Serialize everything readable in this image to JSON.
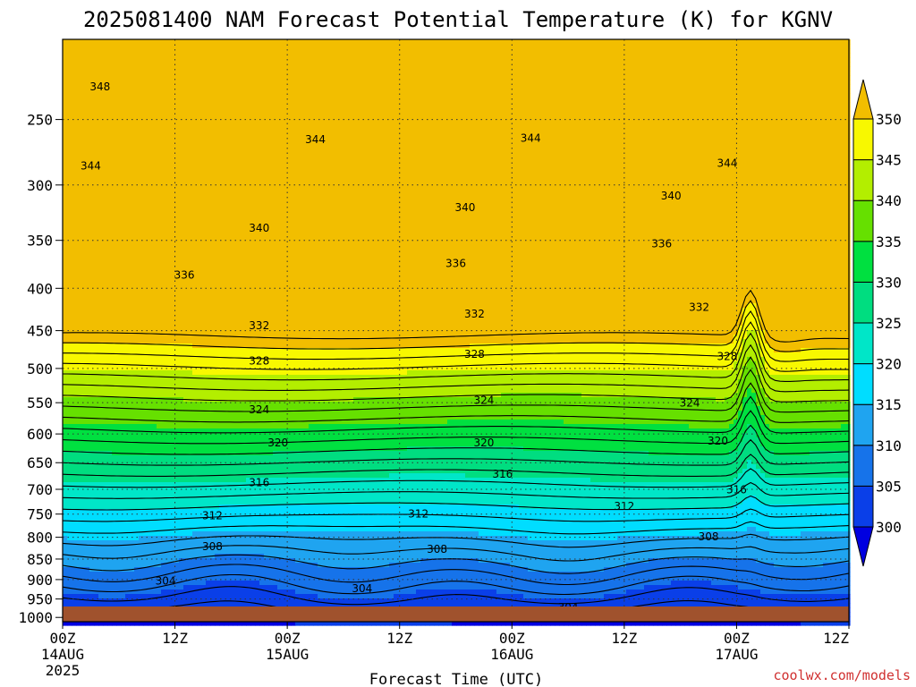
{
  "chart_data": {
    "type": "heatmap",
    "title": "2025081400 NAM Forecast Potential Temperature (K) for KGNV",
    "xlabel": "Forecast Time (UTC)",
    "ylabel": "",
    "credit": "coolwx.com/models",
    "x_ticks": [
      {
        "hours": 0,
        "label": "00Z",
        "sub": "14AUG",
        "year": "2025"
      },
      {
        "hours": 12,
        "label": "12Z",
        "sub": "",
        "year": ""
      },
      {
        "hours": 24,
        "label": "00Z",
        "sub": "15AUG",
        "year": ""
      },
      {
        "hours": 36,
        "label": "12Z",
        "sub": "",
        "year": ""
      },
      {
        "hours": 48,
        "label": "00Z",
        "sub": "16AUG",
        "year": ""
      },
      {
        "hours": 60,
        "label": "12Z",
        "sub": "",
        "year": ""
      },
      {
        "hours": 72,
        "label": "00Z",
        "sub": "17AUG",
        "year": ""
      },
      {
        "hours": 84,
        "label": "12Z",
        "sub": "",
        "year": ""
      }
    ],
    "xlim_hours": [
      0,
      84
    ],
    "y_ticks": [
      250,
      300,
      350,
      400,
      450,
      500,
      550,
      600,
      650,
      700,
      750,
      800,
      850,
      900,
      950,
      1000
    ],
    "ylim": [
      1012,
      200
    ],
    "y_scale": "log",
    "grid": "dotted",
    "colorbar": {
      "levels": [
        300,
        305,
        310,
        315,
        320,
        325,
        330,
        335,
        340,
        345,
        350
      ],
      "colors": [
        "#0000e0",
        "#0a3fe8",
        "#1673ea",
        "#1fa4f0",
        "#00ddff",
        "#00e6c8",
        "#00dd80",
        "#00e040",
        "#66e000",
        "#b3ee00",
        "#f8f800",
        "#f2be00"
      ],
      "extend": "both",
      "position": "right"
    },
    "contour_labels": [
      {
        "value": "348",
        "hours": 4,
        "p": 228
      },
      {
        "value": "344",
        "hours": 3,
        "p": 284
      },
      {
        "value": "344",
        "hours": 27,
        "p": 264
      },
      {
        "value": "344",
        "hours": 50,
        "p": 263
      },
      {
        "value": "344",
        "hours": 71,
        "p": 282
      },
      {
        "value": "340",
        "hours": 21,
        "p": 338
      },
      {
        "value": "340",
        "hours": 43,
        "p": 319
      },
      {
        "value": "340",
        "hours": 65,
        "p": 309
      },
      {
        "value": "336",
        "hours": 13,
        "p": 385
      },
      {
        "value": "336",
        "hours": 42,
        "p": 373
      },
      {
        "value": "336",
        "hours": 64,
        "p": 353
      },
      {
        "value": "332",
        "hours": 21,
        "p": 443
      },
      {
        "value": "332",
        "hours": 44,
        "p": 429
      },
      {
        "value": "332",
        "hours": 68,
        "p": 421
      },
      {
        "value": "328",
        "hours": 21,
        "p": 489
      },
      {
        "value": "328",
        "hours": 44,
        "p": 480
      },
      {
        "value": "328",
        "hours": 71,
        "p": 483
      },
      {
        "value": "324",
        "hours": 21,
        "p": 560
      },
      {
        "value": "324",
        "hours": 45,
        "p": 546
      },
      {
        "value": "324",
        "hours": 67,
        "p": 550
      },
      {
        "value": "320",
        "hours": 23,
        "p": 614
      },
      {
        "value": "320",
        "hours": 45,
        "p": 614
      },
      {
        "value": "320",
        "hours": 70,
        "p": 611
      },
      {
        "value": "316",
        "hours": 21,
        "p": 686
      },
      {
        "value": "316",
        "hours": 47,
        "p": 670
      },
      {
        "value": "316",
        "hours": 72,
        "p": 700
      },
      {
        "value": "312",
        "hours": 16,
        "p": 752
      },
      {
        "value": "312",
        "hours": 38,
        "p": 749
      },
      {
        "value": "312",
        "hours": 60,
        "p": 733
      },
      {
        "value": "308",
        "hours": 16,
        "p": 820
      },
      {
        "value": "308",
        "hours": 40,
        "p": 826
      },
      {
        "value": "308",
        "hours": 69,
        "p": 798
      },
      {
        "value": "304",
        "hours": 11,
        "p": 902
      },
      {
        "value": "304",
        "hours": 32,
        "p": 922
      },
      {
        "value": "304",
        "hours": 54,
        "p": 971
      }
    ]
  }
}
